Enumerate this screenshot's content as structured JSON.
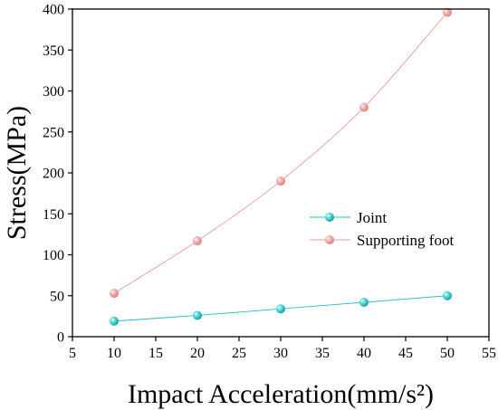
{
  "chart_data": {
    "type": "line",
    "title": "",
    "xlabel": "Impact Acceleration(mm/s²)",
    "ylabel": "Stress(MPa)",
    "xlim": [
      5,
      55
    ],
    "ylim": [
      0,
      400
    ],
    "x_ticks": [
      5,
      10,
      15,
      20,
      25,
      30,
      35,
      40,
      45,
      50,
      55
    ],
    "y_ticks": [
      0,
      50,
      100,
      150,
      200,
      250,
      300,
      350,
      400
    ],
    "x": [
      10,
      20,
      30,
      40,
      50
    ],
    "series": [
      {
        "name": "Joint",
        "values": [
          19,
          26,
          34,
          42,
          50
        ],
        "color": "#1fbfbf"
      },
      {
        "name": "Supporting foot",
        "values": [
          53,
          117,
          190,
          280,
          396
        ],
        "color": "#f09a9a"
      }
    ],
    "grid": false,
    "legend_position": "center-right",
    "marker": "sphere"
  }
}
